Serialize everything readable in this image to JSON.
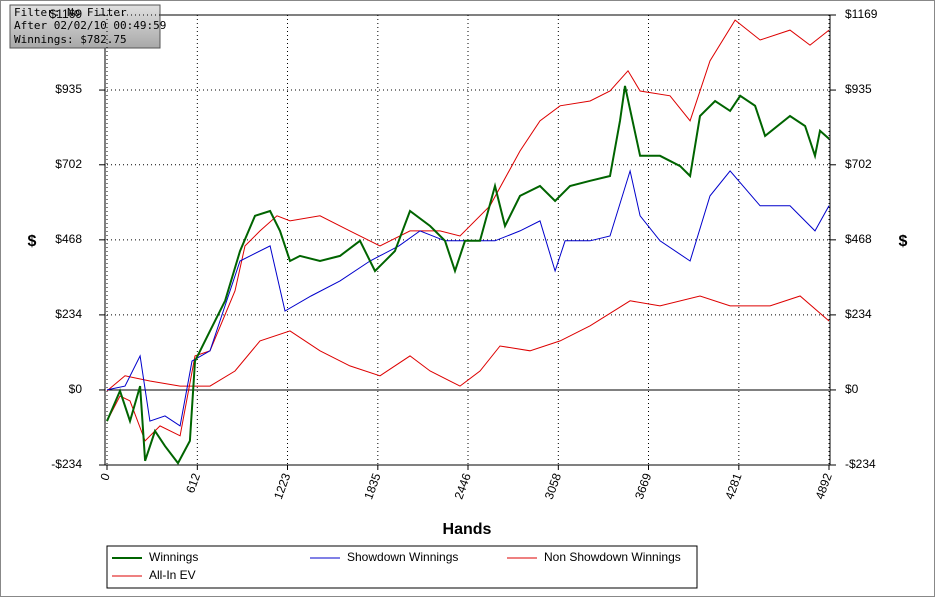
{
  "chart_data": {
    "type": "line",
    "info": [
      "Filter: No Filter",
      "After 02/02/10 00:49:59",
      "Winnings: $782.75"
    ],
    "ylabel": "$",
    "xlabel": "Hands",
    "xlim": [
      0,
      4892
    ],
    "xticks": [
      0,
      612,
      1223,
      1835,
      2446,
      3058,
      3669,
      4281,
      4892
    ],
    "ylim": [
      -234,
      1169
    ],
    "yticks": [
      {
        "value": -234,
        "label": "-$234"
      },
      {
        "value": 0,
        "label": "$0"
      },
      {
        "value": 234,
        "label": "$234"
      },
      {
        "value": 468,
        "label": "$468"
      },
      {
        "value": 702,
        "label": "$702"
      },
      {
        "value": 935,
        "label": "$935"
      },
      {
        "value": 1169,
        "label": "$1169"
      }
    ],
    "grid": true,
    "series": [
      {
        "name": "Winnings",
        "color": "#006400",
        "x": [
          0,
          88,
          156,
          224,
          258,
          325,
          393,
          481,
          562,
          596,
          698,
          800,
          901,
          1003,
          1105,
          1172,
          1240,
          1308,
          1443,
          1579,
          1714,
          1816,
          1951,
          2053,
          2189,
          2290,
          2358,
          2426,
          2527,
          2629,
          2697,
          2798,
          2934,
          3036,
          3137,
          3273,
          3408,
          3476,
          3510,
          3612,
          3747,
          3883,
          3951,
          4018,
          4120,
          4222,
          4290,
          4391,
          4459,
          4628,
          4730,
          4797,
          4831,
          4892
        ],
        "values": [
          -97,
          -3,
          -97,
          12,
          -221,
          -128,
          -175,
          -228,
          -159,
          90,
          184,
          278,
          433,
          543,
          558,
          496,
          402,
          418,
          402,
          418,
          465,
          371,
          433,
          558,
          511,
          465,
          371,
          465,
          465,
          636,
          511,
          605,
          636,
          589,
          636,
          652,
          667,
          839,
          948,
          730,
          730,
          698,
          667,
          854,
          901,
          870,
          917,
          886,
          792,
          854,
          823,
          730,
          808,
          783
        ]
      },
      {
        "name": "Showdown Winnings",
        "color": "#0000cc",
        "x": [
          0,
          122,
          224,
          291,
          393,
          495,
          576,
          698,
          901,
          1105,
          1206,
          1382,
          1579,
          1782,
          1978,
          2121,
          2290,
          2460,
          2629,
          2798,
          2934,
          3036,
          3104,
          3273,
          3408,
          3544,
          3612,
          3747,
          3951,
          4086,
          4222,
          4425,
          4628,
          4797,
          4892
        ],
        "values": [
          0,
          12,
          106,
          -97,
          -81,
          -112,
          90,
          122,
          402,
          449,
          246,
          293,
          340,
          402,
          449,
          496,
          465,
          465,
          465,
          496,
          527,
          371,
          465,
          465,
          480,
          683,
          543,
          465,
          402,
          605,
          683,
          574,
          574,
          496,
          574
        ]
      },
      {
        "name": "Non Showdown Winnings",
        "color": "#dd0000",
        "x": [
          0,
          122,
          291,
          495,
          698,
          867,
          1037,
          1240,
          1443,
          1646,
          1850,
          2053,
          2189,
          2392,
          2527,
          2663,
          2866,
          3070,
          3273,
          3544,
          3747,
          4018,
          4222,
          4493,
          4696,
          4892
        ],
        "values": [
          -3,
          44,
          28,
          12,
          12,
          59,
          153,
          184,
          122,
          75,
          44,
          106,
          59,
          12,
          59,
          137,
          122,
          153,
          200,
          278,
          262,
          293,
          262,
          262,
          293,
          215
        ]
      },
      {
        "name": "All-In EV",
        "color": "#dd0000",
        "x": [
          0,
          88,
          156,
          258,
          359,
          495,
          596,
          698,
          867,
          935,
          1037,
          1152,
          1240,
          1443,
          1646,
          1850,
          2053,
          2256,
          2392,
          2595,
          2798,
          2934,
          3070,
          3273,
          3408,
          3530,
          3612,
          3815,
          3951,
          4086,
          4256,
          4425,
          4628,
          4763,
          4892
        ],
        "values": [
          -97,
          -19,
          -34,
          -159,
          -112,
          -143,
          106,
          122,
          309,
          449,
          496,
          543,
          527,
          543,
          496,
          449,
          496,
          496,
          480,
          574,
          745,
          839,
          886,
          901,
          932,
          995,
          932,
          917,
          839,
          1026,
          1153,
          1091,
          1122,
          1075,
          1122
        ]
      }
    ]
  }
}
